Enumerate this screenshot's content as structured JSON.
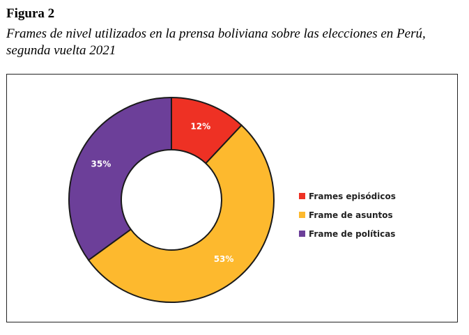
{
  "figure": {
    "label": "Figura 2",
    "caption_line1": "Frames de nivel utilizados en la prensa boliviana sobre las elecciones en Perú,",
    "caption_line2": "segunda vuelta 2021"
  },
  "chart_data": {
    "type": "pie",
    "style": "donut",
    "legend": "right",
    "series": [
      {
        "name": "Frames episódicos",
        "value": 12,
        "label": "12%",
        "color": "#EE3124"
      },
      {
        "name": "Frame de asuntos",
        "value": 53,
        "label": "53%",
        "color": "#FDB92E"
      },
      {
        "name": "Frame de políticas",
        "value": 35,
        "label": "35%",
        "color": "#6C3F99"
      }
    ]
  }
}
